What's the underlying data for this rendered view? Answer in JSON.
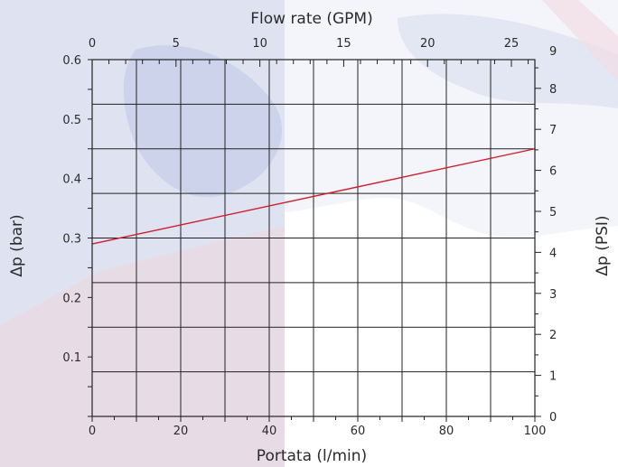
{
  "chart_data": {
    "type": "line",
    "title": "",
    "x_bottom": {
      "label": "Portata (l/min)",
      "range": [
        0,
        100
      ],
      "ticks": [
        "0",
        "20",
        "40",
        "60",
        "80",
        "100"
      ]
    },
    "x_top": {
      "label": "Flow rate (GPM)",
      "range": [
        0,
        26.4
      ],
      "ticks": [
        "0",
        "5",
        "10",
        "15",
        "20",
        "25"
      ]
    },
    "y_left": {
      "label": "Δp (bar)",
      "range": [
        0,
        0.6
      ],
      "ticks": [
        "0.1",
        "0.2",
        "0.3",
        "0.4",
        "0.5",
        "0.6"
      ]
    },
    "y_right": {
      "label": "Δp (PSI)",
      "range": [
        0,
        8.7
      ],
      "ticks": [
        "0",
        "1",
        "2",
        "3",
        "4",
        "5",
        "6",
        "7",
        "8",
        "9"
      ]
    },
    "grid": true,
    "series": [
      {
        "x": [
          0,
          100
        ],
        "y": [
          0.29,
          0.45
        ],
        "color": "#cc1f2a"
      }
    ]
  }
}
